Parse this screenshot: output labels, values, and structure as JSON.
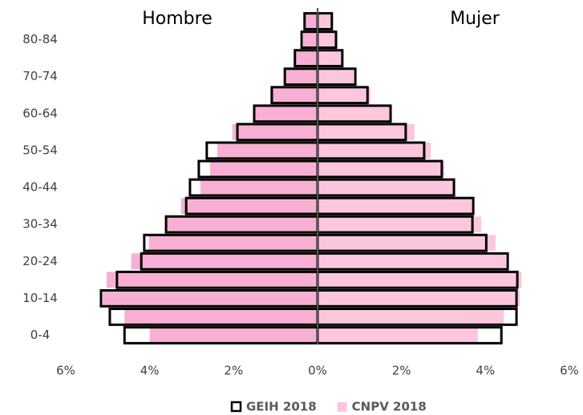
{
  "chart_data": {
    "type": "pyramid",
    "side_labels": [
      "Hombre",
      "Mujer"
    ],
    "categories": [
      "0-4",
      null,
      "10-14",
      null,
      "20-24",
      null,
      "30-34",
      null,
      "40-44",
      null,
      "50-54",
      null,
      "60-64",
      null,
      "70-74",
      null,
      "80-84",
      null
    ],
    "xlim": [
      -6,
      6
    ],
    "xticks": [
      {
        "value": -6,
        "label": "6%"
      },
      {
        "value": -4,
        "label": "4%"
      },
      {
        "value": -2,
        "label": "2%"
      },
      {
        "value": 0,
        "label": "0%"
      },
      {
        "value": 2,
        "label": "2%"
      },
      {
        "value": 4,
        "label": "4%"
      },
      {
        "value": 6,
        "label": "6%"
      }
    ],
    "series": [
      {
        "name": "CNPV 2018",
        "style": "fill",
        "color": "#fcc6dd",
        "hombre_color": "#f7b0d4",
        "hombre": [
          -4.0,
          -4.6,
          -5.12,
          -5.03,
          -4.44,
          -4.02,
          -3.6,
          -3.25,
          -2.79,
          -2.56,
          -2.39,
          -2.03,
          -1.51,
          -1.13,
          -0.76,
          -0.54,
          -0.34,
          -0.31
        ],
        "mujer": [
          3.82,
          4.44,
          4.82,
          4.86,
          4.49,
          4.24,
          3.9,
          3.73,
          3.27,
          3.02,
          2.7,
          2.31,
          1.76,
          1.26,
          0.86,
          0.59,
          0.44,
          0.31
        ]
      },
      {
        "name": "GEIH 2018",
        "style": "outline",
        "color": "#000000",
        "hombre_color": "#000000",
        "hombre": [
          -4.6,
          -4.95,
          -5.16,
          -4.78,
          -4.2,
          -4.13,
          -3.61,
          -3.13,
          -3.04,
          -2.83,
          -2.64,
          -1.91,
          -1.51,
          -1.09,
          -0.78,
          -0.54,
          -0.38,
          -0.31
        ],
        "mujer": [
          4.38,
          4.74,
          4.74,
          4.76,
          4.53,
          4.02,
          3.69,
          3.71,
          3.25,
          2.96,
          2.54,
          2.1,
          1.74,
          1.19,
          0.9,
          0.59,
          0.44,
          0.34
        ]
      }
    ]
  }
}
